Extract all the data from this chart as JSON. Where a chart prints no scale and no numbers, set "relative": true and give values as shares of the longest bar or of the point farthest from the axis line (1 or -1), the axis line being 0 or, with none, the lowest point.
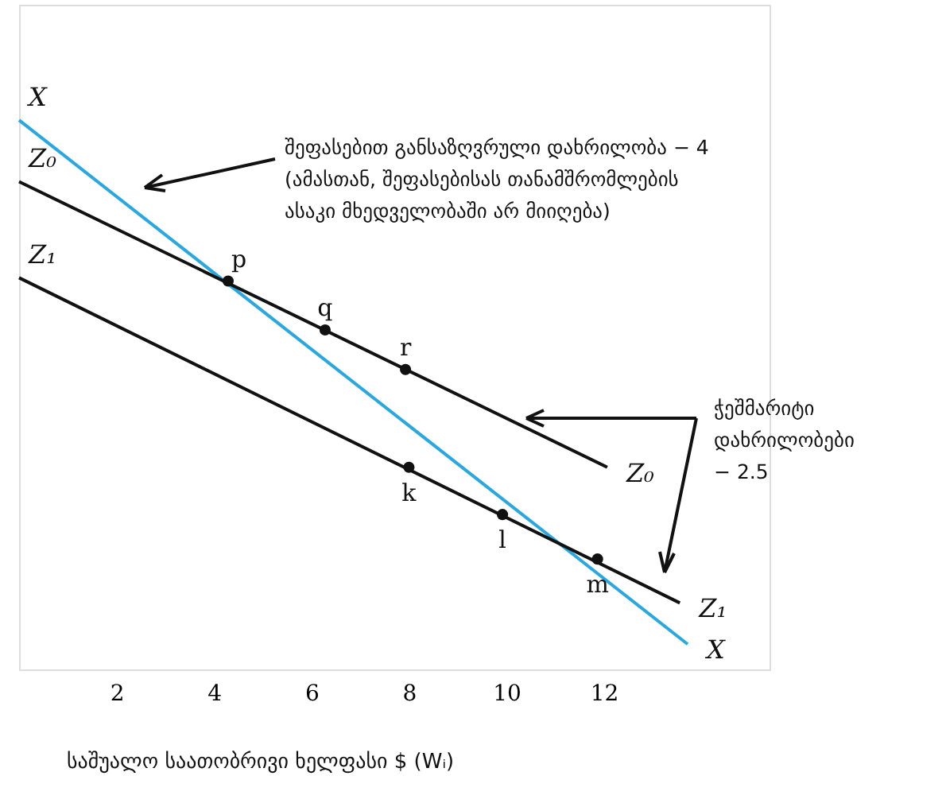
{
  "chart_data": {
    "type": "line",
    "relative": true,
    "xlabel": "საშუალო საათობრივი ხელფასი $ (Wᵢ)",
    "xlim": [
      0,
      15.4
    ],
    "xticks": [
      2,
      4,
      6,
      8,
      10,
      12
    ],
    "tick_labels": "x",
    "grid": false,
    "legend": false,
    "marker": "none",
    "line_style": "solid",
    "series": [
      {
        "name": "X",
        "color": "#29a8e0",
        "x": [
          0,
          13.72
        ],
        "values": [
          1,
          0.046
        ]
      },
      {
        "name": "Z₀",
        "color": "#111111",
        "x": [
          0,
          12.07
        ],
        "values": [
          0.888,
          0.368
        ]
      },
      {
        "name": "Z₁",
        "color": "#111111",
        "x": [
          0,
          13.56
        ],
        "values": [
          0.713,
          0.121
        ]
      },
      {
        "color": "#111111",
        "type": "scatter",
        "marker": "circle",
        "x": [
          4.29,
          6.28,
          7.93,
          8,
          9.92,
          11.87
        ],
        "values": [
          0.707,
          0.618,
          0.546,
          0.368,
          0.282,
          0.201
        ]
      }
    ],
    "annotations": [
      {
        "text": "p",
        "x": 4.29,
        "y": 0.707
      },
      {
        "text": "q",
        "x": 6.28,
        "y": 0.618
      },
      {
        "text": "r",
        "x": 7.93,
        "y": 0.546
      },
      {
        "text": "k",
        "x": 8,
        "y": 0.368
      },
      {
        "text": "l",
        "x": 9.92,
        "y": 0.282
      },
      {
        "text": "m",
        "x": 11.87,
        "y": 0.201
      },
      "შეფასებით განსაზღვრული დახრილობა − 4\n(ამასთან, შეფასებისას თანამშრომლების\nასაკი მხედველობაში არ მიიღება)",
      "ჭეშმარიტი\nდახრილობები\n− 2.5"
    ]
  }
}
